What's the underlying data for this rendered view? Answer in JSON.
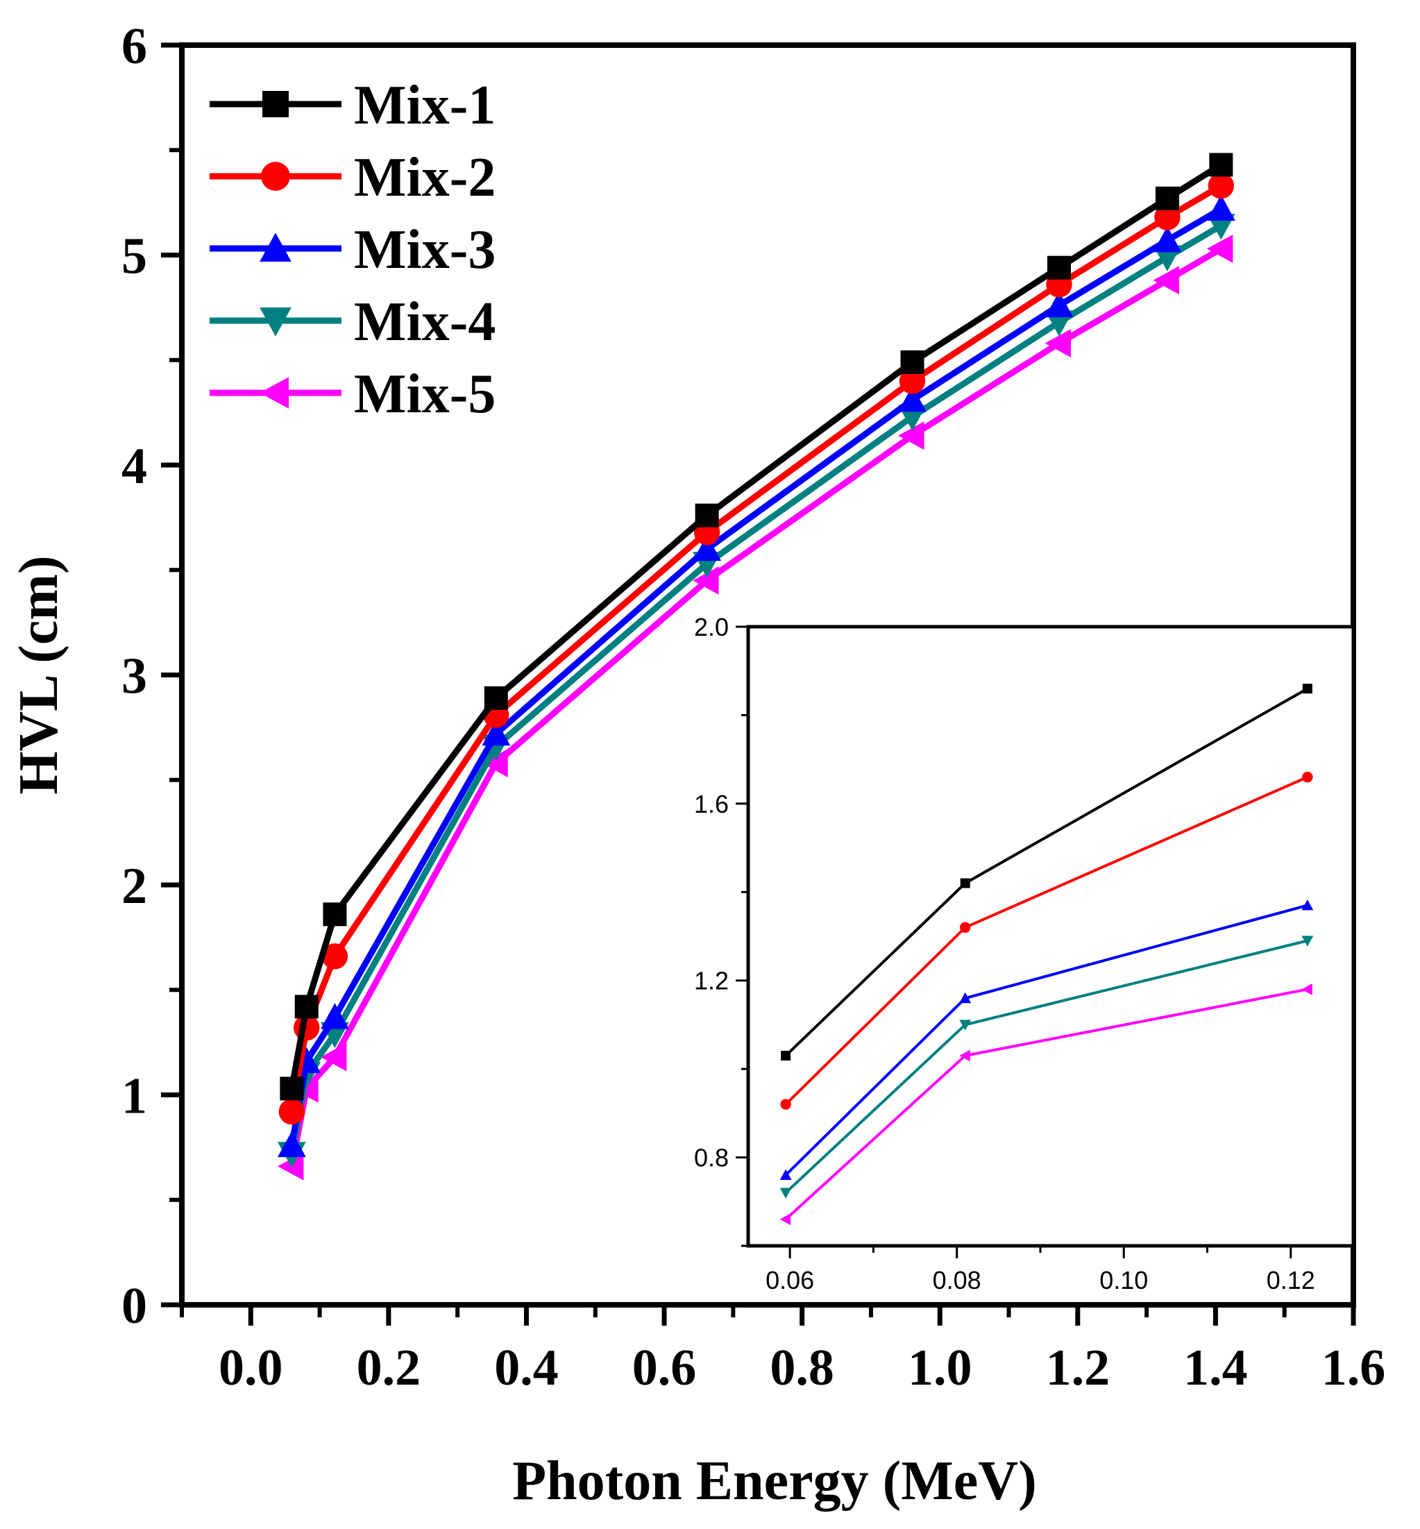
{
  "chart_data": [
    {
      "type": "line",
      "role": "main",
      "title": "",
      "xlabel": "Photon Energy (MeV)",
      "ylabel": "HVL (cm)",
      "xlim": [
        -0.1,
        1.6
      ],
      "ylim": [
        0,
        6
      ],
      "xticks": [
        0.0,
        0.2,
        0.4,
        0.6,
        0.8,
        1.0,
        1.2,
        1.4,
        1.6
      ],
      "xtick_labels": [
        "0.0",
        "0.2",
        "0.4",
        "0.6",
        "0.8",
        "1.0",
        "1.2",
        "1.4",
        "1.6"
      ],
      "yticks": [
        0,
        1,
        2,
        3,
        4,
        5,
        6
      ],
      "ytick_labels": [
        "0",
        "1",
        "2",
        "3",
        "4",
        "5",
        "6"
      ],
      "grid": false,
      "legend_position": "top-left",
      "x": [
        0.0595,
        0.081,
        0.122,
        0.356,
        0.662,
        0.96,
        1.173,
        1.33,
        1.408
      ],
      "series": [
        {
          "name": "Mix-1",
          "color": "#000000",
          "marker": "square",
          "values": [
            1.03,
            1.42,
            1.86,
            2.89,
            3.76,
            4.49,
            4.94,
            5.27,
            5.43
          ]
        },
        {
          "name": "Mix-2",
          "color": "#ff0000",
          "marker": "circle",
          "values": [
            0.92,
            1.32,
            1.66,
            2.81,
            3.68,
            4.4,
            4.86,
            5.18,
            5.33
          ]
        },
        {
          "name": "Mix-3",
          "color": "#0000ff",
          "marker": "triangle-up",
          "values": [
            0.76,
            1.16,
            1.37,
            2.72,
            3.6,
            4.31,
            4.76,
            5.07,
            5.22
          ]
        },
        {
          "name": "Mix-4",
          "color": "#008080",
          "marker": "triangle-down",
          "values": [
            0.72,
            1.1,
            1.29,
            2.66,
            3.53,
            4.23,
            4.68,
            4.99,
            5.14
          ]
        },
        {
          "name": "Mix-5",
          "color": "#ff00ff",
          "marker": "triangle-left",
          "values": [
            0.66,
            1.03,
            1.18,
            2.58,
            3.45,
            4.14,
            4.58,
            4.88,
            5.03
          ]
        }
      ]
    },
    {
      "type": "line",
      "role": "inset",
      "xlim": [
        0.055,
        0.1275
      ],
      "ylim": [
        0.6,
        2.0
      ],
      "xticks": [
        0.06,
        0.08,
        0.1,
        0.12
      ],
      "xtick_labels": [
        "0.06",
        "0.08",
        "0.10",
        "0.12"
      ],
      "yticks": [
        0.8,
        1.2,
        1.6,
        2.0
      ],
      "ytick_labels": [
        "0.8",
        "1.2",
        "1.6",
        "2.0"
      ],
      "x": [
        0.0595,
        0.081,
        0.122
      ],
      "series": [
        {
          "name": "Mix-1",
          "color": "#000000",
          "marker": "square",
          "values": [
            1.03,
            1.42,
            1.86
          ]
        },
        {
          "name": "Mix-2",
          "color": "#ff0000",
          "marker": "circle",
          "values": [
            0.92,
            1.32,
            1.66
          ]
        },
        {
          "name": "Mix-3",
          "color": "#0000ff",
          "marker": "triangle-up",
          "values": [
            0.76,
            1.16,
            1.37
          ]
        },
        {
          "name": "Mix-4",
          "color": "#008080",
          "marker": "triangle-down",
          "values": [
            0.72,
            1.1,
            1.29
          ]
        },
        {
          "name": "Mix-5",
          "color": "#ff00ff",
          "marker": "triangle-left",
          "values": [
            0.66,
            1.03,
            1.18
          ]
        }
      ]
    }
  ]
}
